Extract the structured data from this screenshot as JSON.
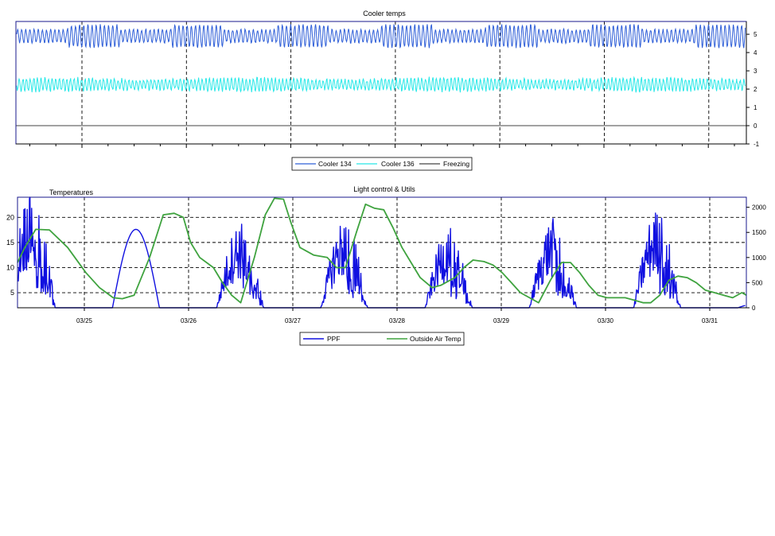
{
  "chart_data": [
    {
      "type": "line",
      "title": "Cooler temps",
      "x_range": [
        "03/24",
        "04/01"
      ],
      "ylim": [
        -1,
        5.7
      ],
      "y_ticks": [
        -1,
        0,
        1,
        2,
        3,
        4,
        5
      ],
      "y_axis_side": "right",
      "grid": "vertical dashed at day boundaries",
      "legend_placement": "bottom-center",
      "series": [
        {
          "name": "Cooler 134",
          "color": "#2f5fd8",
          "base": 4.9,
          "low_swing": 0.35,
          "high_swing": 0.6,
          "description_values": "oscillates roughly between 4.2 and 5.6"
        },
        {
          "name": "Cooler 136",
          "color": "#28e8e8",
          "base": 2.25,
          "low_swing": 0.3,
          "high_swing": 0.35,
          "description_values": "oscillates roughly between 1.8 and 2.8"
        },
        {
          "name": "Freezing",
          "color": "#444444",
          "constant": 0
        }
      ]
    },
    {
      "type": "line",
      "title": "Light control & Utils",
      "x_tick_labels": [
        "03/25",
        "03/26",
        "03/27",
        "03/28",
        "03/29",
        "03/30",
        "03/31"
      ],
      "left_axis": {
        "label": "Temperatures",
        "ylim": [
          2,
          24
        ],
        "ticks": [
          5,
          10,
          15,
          20
        ]
      },
      "right_axis": {
        "ylim": [
          0,
          2200
        ],
        "ticks": [
          0,
          500,
          1000,
          1500,
          2000
        ]
      },
      "grid": "dashed horizontal and vertical",
      "legend_placement": "bottom-center",
      "series": [
        {
          "name": "PPF",
          "color": "#1010e0",
          "axis": "right",
          "daily_peaks": [
            {
              "day": "03/24",
              "peak": 2200,
              "noisy": true
            },
            {
              "day": "03/25",
              "peak": 1560,
              "noisy": false
            },
            {
              "day": "03/26",
              "peak": 1560,
              "noisy": true
            },
            {
              "day": "03/27",
              "peak": 1620,
              "noisy": true
            },
            {
              "day": "03/28",
              "peak": 1450,
              "noisy": true
            },
            {
              "day": "03/29",
              "peak": 1620,
              "noisy": true
            },
            {
              "day": "03/30",
              "peak": 1780,
              "noisy": true
            },
            {
              "day": "03/31",
              "peak": 100,
              "noisy": false
            }
          ]
        },
        {
          "name": "Outside Air Temp",
          "color": "#3fa33f",
          "axis": "left",
          "points": [
            [
              0,
              11
            ],
            [
              0.08,
              14
            ],
            [
              0.2,
              17.6
            ],
            [
              0.35,
              17.5
            ],
            [
              0.55,
              14
            ],
            [
              0.75,
              9
            ],
            [
              0.9,
              6
            ],
            [
              1.05,
              4
            ],
            [
              1.15,
              3.8
            ],
            [
              1.28,
              4.5
            ],
            [
              1.45,
              12
            ],
            [
              1.6,
              20.5
            ],
            [
              1.72,
              20.8
            ],
            [
              1.82,
              20
            ],
            [
              1.9,
              15
            ],
            [
              2.0,
              12
            ],
            [
              2.15,
              10
            ],
            [
              2.25,
              7
            ],
            [
              2.35,
              4.5
            ],
            [
              2.45,
              3
            ],
            [
              2.6,
              12
            ],
            [
              2.72,
              20.5
            ],
            [
              2.82,
              23.8
            ],
            [
              2.92,
              23.6
            ],
            [
              3.0,
              19
            ],
            [
              3.1,
              14
            ],
            [
              3.25,
              12.5
            ],
            [
              3.4,
              12
            ],
            [
              3.5,
              10
            ],
            [
              3.6,
              10
            ],
            [
              3.72,
              17
            ],
            [
              3.82,
              22.6
            ],
            [
              3.92,
              21.8
            ],
            [
              4.02,
              21.5
            ],
            [
              4.12,
              18
            ],
            [
              4.22,
              14
            ],
            [
              4.32,
              11
            ],
            [
              4.42,
              8
            ],
            [
              4.55,
              6
            ],
            [
              4.65,
              6.5
            ],
            [
              4.8,
              8
            ],
            [
              4.9,
              10
            ],
            [
              5.0,
              11.5
            ],
            [
              5.12,
              11.2
            ],
            [
              5.22,
              10.5
            ],
            [
              5.32,
              9
            ],
            [
              5.42,
              7
            ],
            [
              5.52,
              5
            ],
            [
              5.62,
              4
            ],
            [
              5.72,
              3
            ],
            [
              5.85,
              7.5
            ],
            [
              5.97,
              11
            ],
            [
              6.07,
              11
            ],
            [
              6.17,
              9
            ],
            [
              6.27,
              6.5
            ],
            [
              6.37,
              4.5
            ],
            [
              6.47,
              4
            ],
            [
              6.57,
              4
            ],
            [
              6.67,
              4
            ],
            [
              6.77,
              3.5
            ],
            [
              6.87,
              3
            ],
            [
              6.95,
              3
            ],
            [
              7.05,
              4.5
            ],
            [
              7.15,
              7.5
            ],
            [
              7.25,
              8.3
            ],
            [
              7.35,
              8
            ],
            [
              7.45,
              7
            ],
            [
              7.55,
              5.5
            ],
            [
              7.65,
              5
            ],
            [
              7.75,
              4.5
            ],
            [
              7.85,
              4
            ],
            [
              7.95,
              5
            ],
            [
              8.0,
              4.5
            ]
          ]
        }
      ]
    }
  ]
}
